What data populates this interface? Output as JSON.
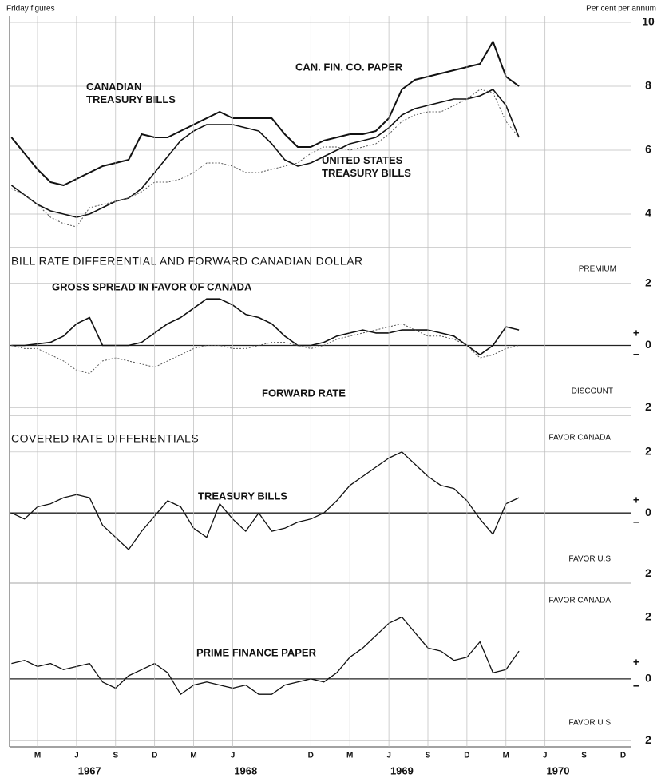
{
  "chart_data": [
    {
      "type": "line",
      "note_left": "Friday figures",
      "note_right": "Per cent per annum",
      "x": [
        "1967-01",
        "1967-02",
        "1967-03",
        "1967-04",
        "1967-05",
        "1967-06",
        "1967-07",
        "1967-08",
        "1967-09",
        "1967-10",
        "1967-11",
        "1967-12",
        "1968-01",
        "1968-02",
        "1968-03",
        "1968-04",
        "1968-05",
        "1968-06",
        "1968-07",
        "1968-08",
        "1968-09",
        "1968-10",
        "1968-11",
        "1968-12",
        "1969-01",
        "1969-02",
        "1969-03",
        "1969-04",
        "1969-05",
        "1969-06",
        "1969-07",
        "1969-08",
        "1969-09",
        "1969-10",
        "1969-11",
        "1969-12",
        "1970-01",
        "1970-02",
        "1970-03",
        "1970-04"
      ],
      "series": [
        {
          "name": "CAN. FIN. CO. PAPER",
          "color": "#111111",
          "width": 2,
          "dash": false,
          "values": [
            6.4,
            5.9,
            5.4,
            5.0,
            4.9,
            5.1,
            5.3,
            5.5,
            5.6,
            5.7,
            6.5,
            6.4,
            6.4,
            6.6,
            6.8,
            7.0,
            7.2,
            7.0,
            7.0,
            7.0,
            7.0,
            6.5,
            6.1,
            6.1,
            6.3,
            6.4,
            6.5,
            6.5,
            6.6,
            7.0,
            7.9,
            8.2,
            8.3,
            8.4,
            8.5,
            8.6,
            8.7,
            9.4,
            8.3,
            8.0
          ]
        },
        {
          "name": "CANADIAN TREASURY BILLS",
          "color": "#111111",
          "width": 1.6,
          "dash": false,
          "values": [
            4.9,
            4.6,
            4.3,
            4.1,
            4.0,
            3.9,
            4.0,
            4.2,
            4.4,
            4.5,
            4.8,
            5.3,
            5.8,
            6.3,
            6.6,
            6.8,
            6.8,
            6.8,
            6.7,
            6.6,
            6.2,
            5.7,
            5.5,
            5.6,
            5.8,
            6.0,
            6.2,
            6.3,
            6.4,
            6.7,
            7.1,
            7.3,
            7.4,
            7.5,
            7.6,
            7.6,
            7.7,
            7.9,
            7.4,
            6.4
          ]
        },
        {
          "name": "UNITED STATES TREASURY BILLS",
          "color": "#555555",
          "width": 1,
          "dash": true,
          "values": [
            4.8,
            4.6,
            4.3,
            3.9,
            3.7,
            3.6,
            4.2,
            4.3,
            4.4,
            4.5,
            4.7,
            5.0,
            5.0,
            5.1,
            5.3,
            5.6,
            5.6,
            5.5,
            5.3,
            5.3,
            5.4,
            5.5,
            5.6,
            5.9,
            6.1,
            6.1,
            6.0,
            6.1,
            6.2,
            6.5,
            6.9,
            7.1,
            7.2,
            7.2,
            7.4,
            7.6,
            7.9,
            7.8,
            6.9,
            6.4
          ]
        }
      ],
      "ylim": [
        3.2,
        10.2
      ],
      "yticks": [
        4,
        6,
        8,
        10
      ],
      "grid": true
    },
    {
      "type": "line",
      "title": "BILL RATE DIFFERENTIAL AND FORWARD CANADIAN DOLLAR",
      "upper_label": "PREMIUM",
      "lower_label": "DISCOUNT",
      "plus_sign": "+",
      "minus_sign": "−",
      "x": [
        "1967-01",
        "1967-02",
        "1967-03",
        "1967-04",
        "1967-05",
        "1967-06",
        "1967-07",
        "1967-08",
        "1967-09",
        "1967-10",
        "1967-11",
        "1967-12",
        "1968-01",
        "1968-02",
        "1968-03",
        "1968-04",
        "1968-05",
        "1968-06",
        "1968-07",
        "1968-08",
        "1968-09",
        "1968-10",
        "1968-11",
        "1968-12",
        "1969-01",
        "1969-02",
        "1969-03",
        "1969-04",
        "1969-05",
        "1969-06",
        "1969-07",
        "1969-08",
        "1969-09",
        "1969-10",
        "1969-11",
        "1969-12",
        "1970-01",
        "1970-02",
        "1970-03",
        "1970-04"
      ],
      "series": [
        {
          "name": "GROSS SPREAD IN FAVOR OF CANADA",
          "color": "#111111",
          "width": 1.6,
          "dash": false,
          "values": [
            0.0,
            0.0,
            0.05,
            0.1,
            0.3,
            0.7,
            0.9,
            0.0,
            0.0,
            0.0,
            0.1,
            0.4,
            0.7,
            0.9,
            1.2,
            1.5,
            1.5,
            1.3,
            1.0,
            0.9,
            0.7,
            0.3,
            0.0,
            0.0,
            0.1,
            0.3,
            0.4,
            0.5,
            0.4,
            0.4,
            0.5,
            0.5,
            0.5,
            0.4,
            0.3,
            0.0,
            -0.3,
            0.0,
            0.6,
            0.5
          ]
        },
        {
          "name": "FORWARD RATE",
          "color": "#555555",
          "width": 1,
          "dash": true,
          "values": [
            0.0,
            -0.1,
            -0.1,
            -0.3,
            -0.5,
            -0.8,
            -0.9,
            -0.5,
            -0.4,
            -0.5,
            -0.6,
            -0.7,
            -0.5,
            -0.3,
            -0.1,
            0.0,
            0.0,
            -0.1,
            -0.1,
            0.0,
            0.1,
            0.1,
            0.0,
            -0.1,
            0.0,
            0.2,
            0.3,
            0.4,
            0.5,
            0.6,
            0.7,
            0.5,
            0.3,
            0.3,
            0.2,
            0.0,
            -0.4,
            -0.3,
            -0.1,
            0.0
          ]
        }
      ],
      "ylim": [
        -2.25,
        3.15
      ],
      "yticks": [
        2,
        0,
        {
          "value": -2,
          "label": "2"
        }
      ],
      "grid": true
    },
    {
      "type": "line",
      "title": "COVERED RATE DIFFERENTIALS",
      "upper_label": "FAVOR CANADA",
      "lower_label": "FAVOR U.S",
      "plus_sign": "+",
      "minus_sign": "−",
      "x": [
        "1967-01",
        "1967-02",
        "1967-03",
        "1967-04",
        "1967-05",
        "1967-06",
        "1967-07",
        "1967-08",
        "1967-09",
        "1967-10",
        "1967-11",
        "1967-12",
        "1968-01",
        "1968-02",
        "1968-03",
        "1968-04",
        "1968-05",
        "1968-06",
        "1968-07",
        "1968-08",
        "1968-09",
        "1968-10",
        "1968-11",
        "1968-12",
        "1969-01",
        "1969-02",
        "1969-03",
        "1969-04",
        "1969-05",
        "1969-06",
        "1969-07",
        "1969-08",
        "1969-09",
        "1969-10",
        "1969-11",
        "1969-12",
        "1970-01",
        "1970-02",
        "1970-03",
        "1970-04"
      ],
      "series": [
        {
          "name": "TREASURY BILLS",
          "color": "#111111",
          "width": 1.3,
          "dash": false,
          "values": [
            0.0,
            -0.2,
            0.2,
            0.3,
            0.5,
            0.6,
            0.5,
            -0.4,
            -0.8,
            -1.2,
            -0.6,
            -0.1,
            0.4,
            0.2,
            -0.5,
            -0.8,
            0.3,
            -0.2,
            -0.6,
            0.0,
            -0.6,
            -0.5,
            -0.3,
            -0.2,
            0.0,
            0.4,
            0.9,
            1.2,
            1.5,
            1.8,
            2.0,
            1.6,
            1.2,
            0.9,
            0.8,
            0.4,
            -0.2,
            -0.7,
            0.3,
            0.5
          ]
        }
      ],
      "ylim": [
        -2.3,
        3.2
      ],
      "yticks": [
        2,
        0,
        {
          "value": -2,
          "label": "2"
        }
      ],
      "grid": true
    },
    {
      "type": "line",
      "upper_label": "FAVOR CANADA",
      "lower_label": "FAVOR U S",
      "plus_sign": "+",
      "minus_sign": "−",
      "x": [
        "1967-01",
        "1967-02",
        "1967-03",
        "1967-04",
        "1967-05",
        "1967-06",
        "1967-07",
        "1967-08",
        "1967-09",
        "1967-10",
        "1967-11",
        "1967-12",
        "1968-01",
        "1968-02",
        "1968-03",
        "1968-04",
        "1968-05",
        "1968-06",
        "1968-07",
        "1968-08",
        "1968-09",
        "1968-10",
        "1968-11",
        "1968-12",
        "1969-01",
        "1969-02",
        "1969-03",
        "1969-04",
        "1969-05",
        "1969-06",
        "1969-07",
        "1969-08",
        "1969-09",
        "1969-10",
        "1969-11",
        "1969-12",
        "1970-01",
        "1970-02",
        "1970-03",
        "1970-04"
      ],
      "series": [
        {
          "name": "PRIME FINANCE PAPER",
          "color": "#111111",
          "width": 1.3,
          "dash": false,
          "values": [
            0.5,
            0.6,
            0.4,
            0.5,
            0.3,
            0.4,
            0.5,
            -0.1,
            -0.3,
            0.1,
            0.3,
            0.5,
            0.2,
            -0.5,
            -0.2,
            -0.1,
            -0.2,
            -0.3,
            -0.2,
            -0.5,
            -0.5,
            -0.2,
            -0.1,
            0.0,
            -0.1,
            0.2,
            0.7,
            1.0,
            1.4,
            1.8,
            2.0,
            1.5,
            1.0,
            0.9,
            0.6,
            0.7,
            1.2,
            0.2,
            0.3,
            0.9
          ]
        }
      ],
      "ylim": [
        -2.2,
        3.1
      ],
      "yticks": [
        2,
        0,
        {
          "value": -2,
          "label": "2"
        }
      ],
      "grid": true,
      "xticks": [
        {
          "value": "1967-03",
          "label": "M"
        },
        {
          "value": "1967-06",
          "label": "J"
        },
        {
          "value": "1967-09",
          "label": "S"
        },
        {
          "value": "1967-12",
          "label": "D"
        },
        {
          "value": "1968-03",
          "label": "M"
        },
        {
          "value": "1968-06",
          "label": "J"
        },
        {
          "value": "1968-12",
          "label": "D"
        },
        {
          "value": "1969-03",
          "label": "M"
        },
        {
          "value": "1969-06",
          "label": "J"
        },
        {
          "value": "1969-09",
          "label": "S"
        },
        {
          "value": "1969-12",
          "label": "D"
        },
        {
          "value": "1970-03",
          "label": "M"
        },
        {
          "value": "1970-06",
          "label": "J"
        },
        {
          "value": "1970-09",
          "label": "S"
        },
        {
          "value": "1970-12",
          "label": "D"
        }
      ],
      "year_labels": [
        {
          "value": "1967-07",
          "label": "1967"
        },
        {
          "value": "1968-07",
          "label": "1968"
        },
        {
          "value": "1969-07",
          "label": "1969"
        },
        {
          "value": "1970-07",
          "label": "1970"
        }
      ]
    }
  ]
}
